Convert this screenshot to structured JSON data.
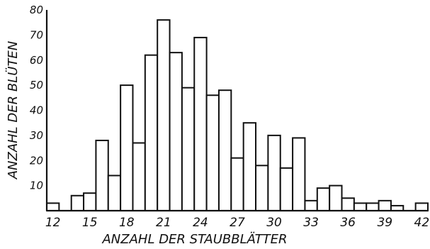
{
  "chart_data": {
    "type": "bar",
    "xlabel": "ANZAHL DER STAUBBLÄTTER",
    "ylabel": "ANZAHL DER BLÜTEN",
    "x": [
      12,
      13,
      14,
      15,
      16,
      17,
      18,
      19,
      20,
      21,
      22,
      23,
      24,
      25,
      26,
      27,
      28,
      29,
      30,
      31,
      32,
      33,
      34,
      35,
      36,
      37,
      38,
      39,
      40,
      41,
      42
    ],
    "values": [
      3,
      0,
      6,
      7,
      28,
      14,
      50,
      27,
      62,
      76,
      63,
      49,
      69,
      46,
      48,
      21,
      35,
      18,
      30,
      17,
      29,
      4,
      9,
      10,
      5,
      3,
      3,
      4,
      2,
      0,
      3
    ],
    "xlim": [
      11.5,
      42.5
    ],
    "ylim": [
      0,
      80
    ],
    "xticks": [
      "12",
      "15",
      "18",
      "21",
      "24",
      "27",
      "30",
      "33",
      "36",
      "39",
      "42"
    ],
    "yticks": [
      "10",
      "20",
      "30",
      "40",
      "50",
      "60",
      "70",
      "80"
    ],
    "grid": false,
    "legend": false
  }
}
